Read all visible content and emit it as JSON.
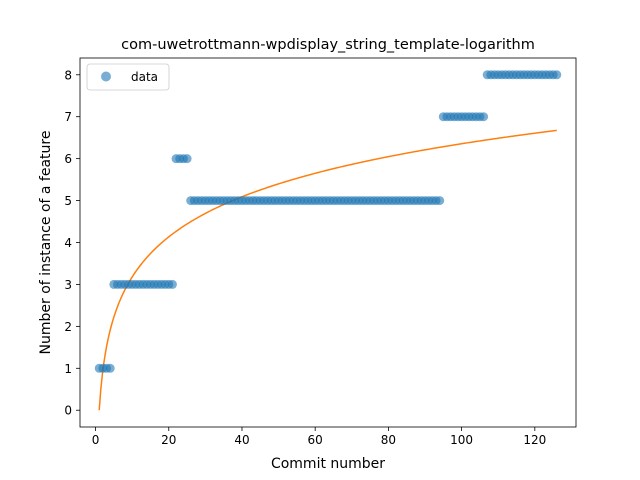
{
  "chart_data": {
    "type": "scatter",
    "title": "com-uwetrottmann-wpdisplay_string_template-logarithm",
    "xlabel": "Commit number",
    "ylabel": "Number of instance of a feature",
    "xlim": [
      -4.25,
      131.25
    ],
    "ylim": [
      -0.4,
      8.4
    ],
    "xticks": [
      0,
      20,
      40,
      60,
      80,
      100,
      120
    ],
    "yticks": [
      0,
      1,
      2,
      3,
      4,
      5,
      6,
      7,
      8
    ],
    "grid": false,
    "legend": {
      "placement": "top-left",
      "entries": [
        "data"
      ]
    },
    "colors": {
      "data": "#1f77b4",
      "fit": "#ff7f0e"
    },
    "series": [
      {
        "name": "data",
        "kind": "scatter",
        "segments": [
          {
            "x_start": 1,
            "x_end": 4,
            "y": 1
          },
          {
            "x_start": 5,
            "x_end": 21,
            "y": 3
          },
          {
            "x_start": 22,
            "x_end": 25,
            "y": 6
          },
          {
            "x_start": 26,
            "x_end": 94,
            "y": 5
          },
          {
            "x_start": 95,
            "x_end": 106,
            "y": 7
          },
          {
            "x_start": 107,
            "x_end": 126,
            "y": 8
          }
        ]
      },
      {
        "kind": "line",
        "model": "a*ln(x)+b",
        "a": 1.38,
        "b": 0.0,
        "x_range": [
          1,
          126
        ]
      }
    ]
  }
}
